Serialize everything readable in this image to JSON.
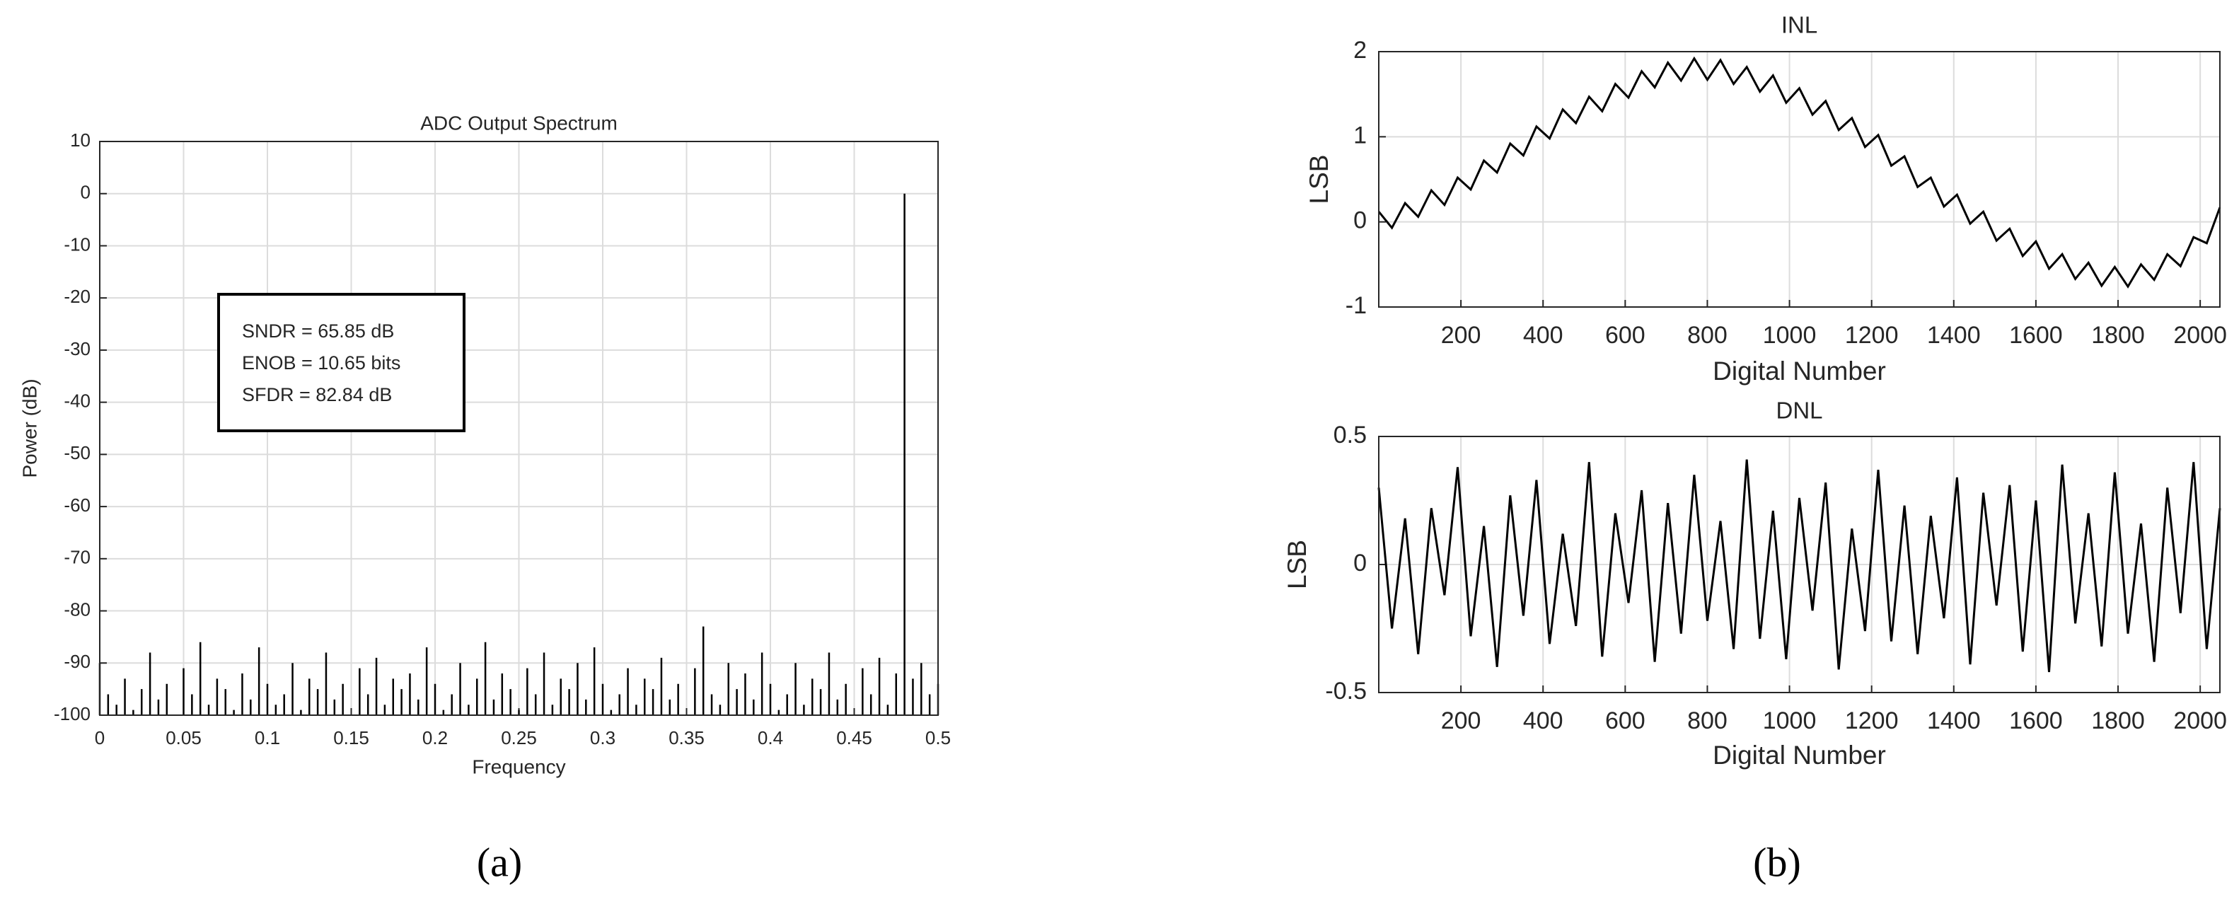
{
  "chart_data": [
    {
      "type": "stem",
      "title": "ADC Output Spectrum",
      "xlabel": "Frequency",
      "ylabel": "Power (dB)",
      "color": "#000000",
      "grid": true,
      "annotations": [
        "SNDR = 65.85 dB",
        "ENOB = 10.65 bits",
        "SFDR = 82.84 dB"
      ],
      "xlim": [
        0,
        0.5
      ],
      "ylim": [
        -100,
        10
      ],
      "xticks": [
        0,
        0.05,
        0.1,
        0.15,
        0.2,
        0.25,
        0.3,
        0.35,
        0.4,
        0.45,
        0.5
      ],
      "yticks": [
        -100,
        -90,
        -80,
        -70,
        -60,
        -50,
        -40,
        -30,
        -20,
        -10,
        0,
        10
      ],
      "x": [
        0,
        0.005,
        0.01,
        0.015,
        0.02,
        0.025,
        0.03,
        0.035,
        0.04,
        0.045,
        0.05,
        0.055,
        0.06,
        0.065,
        0.07,
        0.075,
        0.08,
        0.085,
        0.09,
        0.095,
        0.1,
        0.105,
        0.11,
        0.115,
        0.12,
        0.125,
        0.13,
        0.135,
        0.14,
        0.145,
        0.15,
        0.155,
        0.16,
        0.165,
        0.17,
        0.175,
        0.18,
        0.185,
        0.19,
        0.195,
        0.2,
        0.205,
        0.21,
        0.215,
        0.22,
        0.225,
        0.23,
        0.235,
        0.24,
        0.245,
        0.25,
        0.255,
        0.26,
        0.265,
        0.27,
        0.275,
        0.28,
        0.285,
        0.29,
        0.295,
        0.3,
        0.305,
        0.31,
        0.315,
        0.32,
        0.325,
        0.33,
        0.335,
        0.34,
        0.345,
        0.35,
        0.355,
        0.36,
        0.365,
        0.37,
        0.375,
        0.38,
        0.385,
        0.39,
        0.395,
        0.4,
        0.405,
        0.41,
        0.415,
        0.42,
        0.425,
        0.43,
        0.435,
        0.44,
        0.445,
        0.45,
        0.455,
        0.46,
        0.465,
        0.47,
        0.475,
        0.48,
        0.485,
        0.49,
        0.495,
        0.5
      ],
      "values": [
        -90,
        -96,
        -98,
        -93,
        -99,
        -95,
        -88,
        -97,
        -94,
        -100,
        -91,
        -96,
        -86,
        -98,
        -93,
        -95,
        -99,
        -92,
        -97,
        -87,
        -94,
        -98,
        -96,
        -90,
        -99,
        -93,
        -95,
        -88,
        -97,
        -94,
        -100,
        -91,
        -96,
        -89,
        -98,
        -93,
        -95,
        -92,
        -97,
        -87,
        -94,
        -99,
        -96,
        -90,
        -98,
        -93,
        -86,
        -97,
        -92,
        -95,
        -99,
        -91,
        -96,
        -88,
        -98,
        -93,
        -95,
        -90,
        -97,
        -87,
        -94,
        -99,
        -96,
        -91,
        -98,
        -93,
        -95,
        -89,
        -97,
        -94,
        -100,
        -91,
        -83,
        -96,
        -98,
        -90,
        -95,
        -92,
        -97,
        -88,
        -94,
        -99,
        -96,
        -90,
        -98,
        -93,
        -95,
        -88,
        -97,
        -94,
        -100,
        -91,
        -96,
        -89,
        -98,
        -92,
        0,
        -93,
        -90,
        -96,
        -94
      ]
    },
    {
      "type": "line",
      "title": "INL",
      "xlabel": "Digital Number",
      "ylabel": "LSB",
      "color": "#000000",
      "grid": true,
      "xlim": [
        0,
        2048
      ],
      "ylim": [
        -1,
        2
      ],
      "xticks": [
        200,
        400,
        600,
        800,
        1000,
        1200,
        1400,
        1600,
        1800,
        2000
      ],
      "yticks": [
        -1,
        0,
        1,
        2
      ],
      "x": [
        0,
        32,
        64,
        96,
        128,
        160,
        192,
        224,
        256,
        288,
        320,
        352,
        384,
        416,
        448,
        480,
        512,
        544,
        576,
        608,
        640,
        672,
        704,
        736,
        768,
        800,
        832,
        864,
        896,
        928,
        960,
        992,
        1024,
        1056,
        1088,
        1120,
        1152,
        1184,
        1216,
        1248,
        1280,
        1312,
        1344,
        1376,
        1408,
        1440,
        1472,
        1504,
        1536,
        1568,
        1600,
        1632,
        1664,
        1696,
        1728,
        1760,
        1792,
        1824,
        1856,
        1888,
        1920,
        1952,
        1984,
        2016,
        2048
      ],
      "values": [
        0.12,
        -0.07,
        0.22,
        0.06,
        0.37,
        0.2,
        0.52,
        0.38,
        0.72,
        0.58,
        0.92,
        0.78,
        1.12,
        0.98,
        1.32,
        1.16,
        1.47,
        1.3,
        1.62,
        1.46,
        1.77,
        1.58,
        1.87,
        1.66,
        1.92,
        1.67,
        1.9,
        1.62,
        1.82,
        1.53,
        1.72,
        1.4,
        1.57,
        1.26,
        1.42,
        1.08,
        1.22,
        0.88,
        1.02,
        0.66,
        0.77,
        0.41,
        0.52,
        0.18,
        0.32,
        -0.02,
        0.12,
        -0.22,
        -0.08,
        -0.4,
        -0.23,
        -0.55,
        -0.38,
        -0.67,
        -0.48,
        -0.75,
        -0.53,
        -0.76,
        -0.5,
        -0.68,
        -0.38,
        -0.52,
        -0.18,
        -0.25,
        0.17
      ]
    },
    {
      "type": "line",
      "title": "DNL",
      "xlabel": "Digital Number",
      "ylabel": "LSB",
      "color": "#000000",
      "grid": true,
      "xlim": [
        0,
        2048
      ],
      "ylim": [
        -0.5,
        0.5
      ],
      "xticks": [
        200,
        400,
        600,
        800,
        1000,
        1200,
        1400,
        1600,
        1800,
        2000
      ],
      "yticks": [
        -0.5,
        0,
        0.5
      ],
      "x": [
        0,
        32,
        64,
        96,
        128,
        160,
        192,
        224,
        256,
        288,
        320,
        352,
        384,
        416,
        448,
        480,
        512,
        544,
        576,
        608,
        640,
        672,
        704,
        736,
        768,
        800,
        832,
        864,
        896,
        928,
        960,
        992,
        1024,
        1056,
        1088,
        1120,
        1152,
        1184,
        1216,
        1248,
        1280,
        1312,
        1344,
        1376,
        1408,
        1440,
        1472,
        1504,
        1536,
        1568,
        1600,
        1632,
        1664,
        1696,
        1728,
        1760,
        1792,
        1824,
        1856,
        1888,
        1920,
        1952,
        1984,
        2016,
        2048
      ],
      "values": [
        0.3,
        -0.25,
        0.18,
        -0.35,
        0.22,
        -0.12,
        0.38,
        -0.28,
        0.15,
        -0.4,
        0.27,
        -0.2,
        0.33,
        -0.31,
        0.12,
        -0.24,
        0.4,
        -0.36,
        0.2,
        -0.15,
        0.29,
        -0.38,
        0.24,
        -0.27,
        0.35,
        -0.22,
        0.17,
        -0.33,
        0.41,
        -0.29,
        0.21,
        -0.37,
        0.26,
        -0.18,
        0.32,
        -0.41,
        0.14,
        -0.26,
        0.37,
        -0.3,
        0.23,
        -0.35,
        0.19,
        -0.21,
        0.34,
        -0.39,
        0.28,
        -0.16,
        0.31,
        -0.34,
        0.25,
        -0.42,
        0.39,
        -0.23,
        0.2,
        -0.32,
        0.36,
        -0.27,
        0.16,
        -0.38,
        0.3,
        -0.19,
        0.4,
        -0.33,
        0.22
      ]
    }
  ],
  "captions": [
    "(a)",
    "(b)"
  ]
}
